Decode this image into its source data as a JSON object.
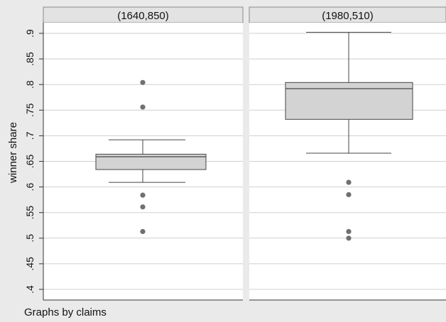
{
  "chart_data": {
    "type": "box",
    "ylabel": "winner share",
    "note": "Graphs by claims",
    "ylim": [
      0.4,
      0.9
    ],
    "yticks": [
      {
        "value": 0.9,
        "label": ".9"
      },
      {
        "value": 0.85,
        "label": ".85"
      },
      {
        "value": 0.8,
        "label": ".8"
      },
      {
        "value": 0.75,
        "label": ".75"
      },
      {
        "value": 0.7,
        "label": ".7"
      },
      {
        "value": 0.65,
        "label": ".65"
      },
      {
        "value": 0.6,
        "label": ".6"
      },
      {
        "value": 0.55,
        "label": ".55"
      },
      {
        "value": 0.5,
        "label": ".5"
      },
      {
        "value": 0.45,
        "label": ".45"
      },
      {
        "value": 0.4,
        "label": ".4"
      }
    ],
    "grid": true,
    "colors": {
      "box_fill": "#d3d3d3",
      "header_fill": "#e3e3e3",
      "outlier": "#707070",
      "grid": "#cfcfcf"
    },
    "panels": [
      {
        "title": "(1640,850)",
        "whisker_low": 0.609,
        "q1": 0.634,
        "median": 0.659,
        "q3": 0.664,
        "whisker_high": 0.692,
        "outliers": [
          0.804,
          0.756,
          0.584,
          0.561,
          0.513
        ]
      },
      {
        "title": "(1980,510)",
        "whisker_low": 0.666,
        "q1": 0.732,
        "median": 0.792,
        "q3": 0.804,
        "whisker_high": 0.902,
        "outliers": [
          0.609,
          0.585,
          0.513,
          0.5
        ]
      }
    ]
  }
}
